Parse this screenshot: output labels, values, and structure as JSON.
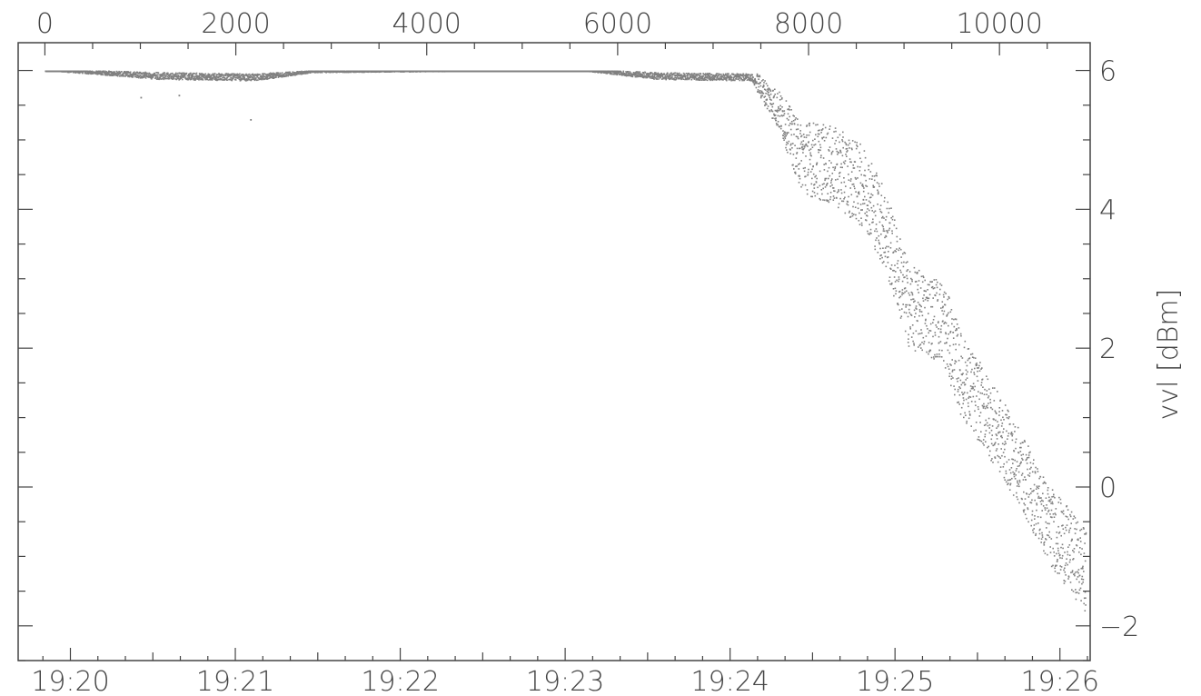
{
  "chart_data": {
    "type": "scatter",
    "ylabel": "vvl [dBm]",
    "ylim": [
      -2.5,
      6.4
    ],
    "xlim_samples": [
      -280,
      10950
    ],
    "xlim_time": [
      "19:19:41",
      "19:26:11"
    ],
    "top_x_ticks": [
      "0",
      "2000",
      "4000",
      "6000",
      "8000",
      "10000"
    ],
    "bottom_x_ticks": [
      "19:20",
      "19:21",
      "19:22",
      "19:23",
      "19:24",
      "19:25",
      "19:26"
    ],
    "y_ticks": [
      "6",
      "4",
      "2",
      "0",
      "−2"
    ],
    "grid": false,
    "marker_color": "#808080",
    "series": [
      {
        "trend": [
          [
            0,
            6.0
          ],
          [
            1200,
            5.95
          ],
          [
            2200,
            5.93
          ],
          [
            2800,
            5.98
          ],
          [
            5600,
            6.0
          ],
          [
            6400,
            5.95
          ],
          [
            7400,
            5.93
          ],
          [
            7700,
            5.4
          ],
          [
            7900,
            4.8
          ],
          [
            8300,
            4.6
          ],
          [
            8600,
            4.3
          ],
          [
            8800,
            3.7
          ],
          [
            9050,
            2.6
          ],
          [
            9400,
            2.4
          ],
          [
            9600,
            1.6
          ],
          [
            9800,
            1.2
          ],
          [
            10200,
            0.3
          ],
          [
            10500,
            -0.5
          ],
          [
            10900,
            -1.2
          ]
        ],
        "spread": [
          [
            0,
            0.02
          ],
          [
            1200,
            0.1
          ],
          [
            2200,
            0.1
          ],
          [
            2800,
            0.03
          ],
          [
            5600,
            0.02
          ],
          [
            6400,
            0.1
          ],
          [
            7400,
            0.1
          ],
          [
            7700,
            0.3
          ],
          [
            8000,
            0.55
          ],
          [
            8700,
            0.6
          ],
          [
            9100,
            0.6
          ],
          [
            9600,
            0.6
          ],
          [
            10200,
            0.55
          ],
          [
            10900,
            0.6
          ]
        ],
        "outliers": [
          [
            2150,
            5.3
          ],
          [
            1000,
            5.62
          ],
          [
            1400,
            5.65
          ]
        ]
      }
    ]
  }
}
